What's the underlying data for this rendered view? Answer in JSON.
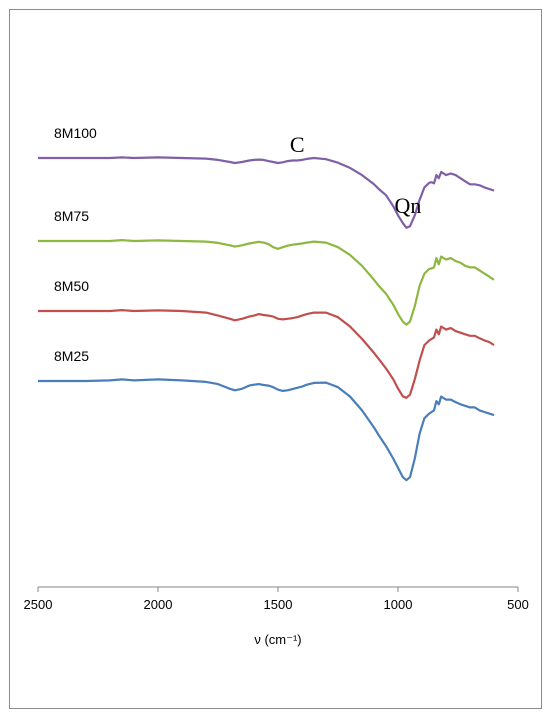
{
  "chart_data": {
    "type": "line",
    "title": "",
    "xlabel": "ν (cm⁻¹)",
    "ylabel": "",
    "xlim": [
      2500,
      500
    ],
    "x_reversed": true,
    "xticks": [
      2500,
      2000,
      1500,
      1000,
      500
    ],
    "xtick_labels": [
      "2500",
      "2000",
      "1500",
      "1000",
      "500"
    ],
    "y_axis_visible": false,
    "grid": false,
    "legend": "inline labels",
    "annotations": [
      {
        "text": "C",
        "x": 1420
      },
      {
        "text": "Qn",
        "x": 1000
      }
    ],
    "series": [
      {
        "name": "8M100",
        "color": "#7f5fa8",
        "x": [
          2500,
          2400,
          2300,
          2200,
          2150,
          2100,
          2000,
          1900,
          1800,
          1750,
          1700,
          1680,
          1650,
          1620,
          1600,
          1580,
          1560,
          1540,
          1520,
          1500,
          1480,
          1460,
          1440,
          1420,
          1400,
          1380,
          1350,
          1300,
          1250,
          1200,
          1150,
          1100,
          1080,
          1050,
          1020,
          1000,
          980,
          965,
          950,
          930,
          910,
          890,
          870,
          860,
          850,
          840,
          830,
          820,
          810,
          800,
          780,
          760,
          740,
          720,
          700,
          680,
          660,
          640,
          620,
          600
        ],
        "y": [
          0.0,
          0.0,
          0.0,
          0.0,
          0.2,
          0.0,
          0.2,
          0.0,
          -0.2,
          -0.6,
          -1.3,
          -1.6,
          -1.3,
          -0.8,
          -0.6,
          -0.5,
          -0.6,
          -1.0,
          -1.3,
          -1.6,
          -1.4,
          -1.0,
          -0.8,
          -0.8,
          -0.6,
          -0.3,
          0.0,
          -0.4,
          -1.5,
          -3.2,
          -5.5,
          -8.5,
          -10.0,
          -12.0,
          -15.5,
          -18.5,
          -21.0,
          -22.5,
          -22.0,
          -18.5,
          -13.5,
          -9.5,
          -8.0,
          -7.8,
          -8.2,
          -5.5,
          -6.5,
          -4.5,
          -5.0,
          -5.5,
          -5.0,
          -5.5,
          -6.5,
          -7.5,
          -8.5,
          -8.5,
          -8.8,
          -9.5,
          -10.0,
          -10.5
        ]
      },
      {
        "name": "8M75",
        "color": "#8db83f",
        "x": [
          2500,
          2400,
          2300,
          2200,
          2150,
          2100,
          2000,
          1900,
          1800,
          1750,
          1700,
          1680,
          1650,
          1620,
          1600,
          1580,
          1560,
          1540,
          1520,
          1500,
          1480,
          1460,
          1440,
          1420,
          1400,
          1380,
          1350,
          1300,
          1250,
          1200,
          1150,
          1100,
          1080,
          1050,
          1020,
          1000,
          980,
          965,
          950,
          930,
          910,
          890,
          870,
          860,
          850,
          840,
          830,
          820,
          810,
          800,
          780,
          760,
          740,
          720,
          700,
          680,
          660,
          640,
          620,
          600
        ],
        "y": [
          0.0,
          0.0,
          0.0,
          0.0,
          0.3,
          0.0,
          0.2,
          0.0,
          -0.2,
          -0.6,
          -1.4,
          -1.8,
          -1.4,
          -0.8,
          -0.5,
          -0.3,
          -0.5,
          -1.0,
          -2.0,
          -2.5,
          -2.0,
          -1.5,
          -1.2,
          -1.0,
          -0.8,
          -0.5,
          -0.2,
          -0.5,
          -2.0,
          -4.5,
          -8.0,
          -12.5,
          -14.5,
          -17.0,
          -20.5,
          -23.5,
          -26.0,
          -27.0,
          -26.0,
          -21.0,
          -14.5,
          -10.5,
          -9.0,
          -8.8,
          -8.5,
          -5.5,
          -7.5,
          -5.0,
          -5.5,
          -6.0,
          -5.5,
          -6.5,
          -7.0,
          -8.0,
          -8.5,
          -8.5,
          -9.5,
          -10.5,
          -11.5,
          -12.5
        ]
      },
      {
        "name": "8M50",
        "color": "#c0504d",
        "x": [
          2500,
          2400,
          2300,
          2200,
          2150,
          2100,
          2000,
          1900,
          1800,
          1750,
          1700,
          1680,
          1650,
          1620,
          1600,
          1580,
          1560,
          1540,
          1520,
          1500,
          1480,
          1460,
          1440,
          1420,
          1400,
          1380,
          1350,
          1300,
          1250,
          1200,
          1150,
          1100,
          1080,
          1050,
          1020,
          1000,
          980,
          965,
          950,
          930,
          910,
          890,
          870,
          860,
          850,
          840,
          830,
          820,
          810,
          800,
          780,
          760,
          740,
          720,
          700,
          680,
          660,
          640,
          620,
          600
        ],
        "y": [
          0.0,
          0.0,
          0.0,
          0.0,
          0.3,
          0.0,
          0.2,
          0.0,
          -0.5,
          -1.5,
          -2.5,
          -3.0,
          -2.5,
          -1.8,
          -1.5,
          -1.0,
          -1.3,
          -1.5,
          -1.8,
          -2.5,
          -2.7,
          -2.5,
          -2.3,
          -2.0,
          -1.5,
          -1.0,
          -0.5,
          -0.5,
          -2.0,
          -5.0,
          -9.0,
          -13.5,
          -15.5,
          -18.5,
          -22.0,
          -25.0,
          -27.5,
          -28.0,
          -27.0,
          -22.0,
          -16.0,
          -11.0,
          -9.5,
          -9.0,
          -8.5,
          -6.0,
          -7.5,
          -5.0,
          -5.5,
          -6.0,
          -5.5,
          -6.5,
          -7.0,
          -7.5,
          -8.0,
          -8.0,
          -8.8,
          -9.5,
          -10.0,
          -11.0
        ]
      },
      {
        "name": "8M25",
        "color": "#4a7ebb",
        "x": [
          2500,
          2400,
          2300,
          2200,
          2150,
          2100,
          2000,
          1900,
          1800,
          1750,
          1700,
          1680,
          1650,
          1620,
          1600,
          1580,
          1560,
          1540,
          1520,
          1500,
          1480,
          1460,
          1440,
          1420,
          1400,
          1380,
          1350,
          1300,
          1250,
          1200,
          1150,
          1100,
          1080,
          1050,
          1020,
          1000,
          980,
          965,
          950,
          930,
          910,
          890,
          870,
          860,
          850,
          840,
          830,
          820,
          810,
          800,
          780,
          760,
          740,
          720,
          700,
          680,
          660,
          640,
          620,
          600
        ],
        "y": [
          0.0,
          0.0,
          0.0,
          0.2,
          0.5,
          0.2,
          0.5,
          0.2,
          -0.3,
          -1.0,
          -2.5,
          -3.0,
          -2.5,
          -1.5,
          -1.2,
          -1.0,
          -1.3,
          -1.5,
          -2.0,
          -2.8,
          -3.2,
          -3.0,
          -2.6,
          -2.2,
          -1.8,
          -1.2,
          -0.6,
          -0.5,
          -2.0,
          -5.0,
          -9.5,
          -15.0,
          -17.5,
          -21.0,
          -25.0,
          -28.0,
          -31.0,
          -32.0,
          -31.0,
          -25.0,
          -17.0,
          -12.0,
          -10.5,
          -10.0,
          -9.5,
          -6.5,
          -7.5,
          -5.0,
          -5.5,
          -6.0,
          -6.0,
          -6.8,
          -7.5,
          -8.0,
          -8.5,
          -8.5,
          -9.5,
          -10.0,
          -10.5,
          -11.0
        ]
      }
    ]
  }
}
